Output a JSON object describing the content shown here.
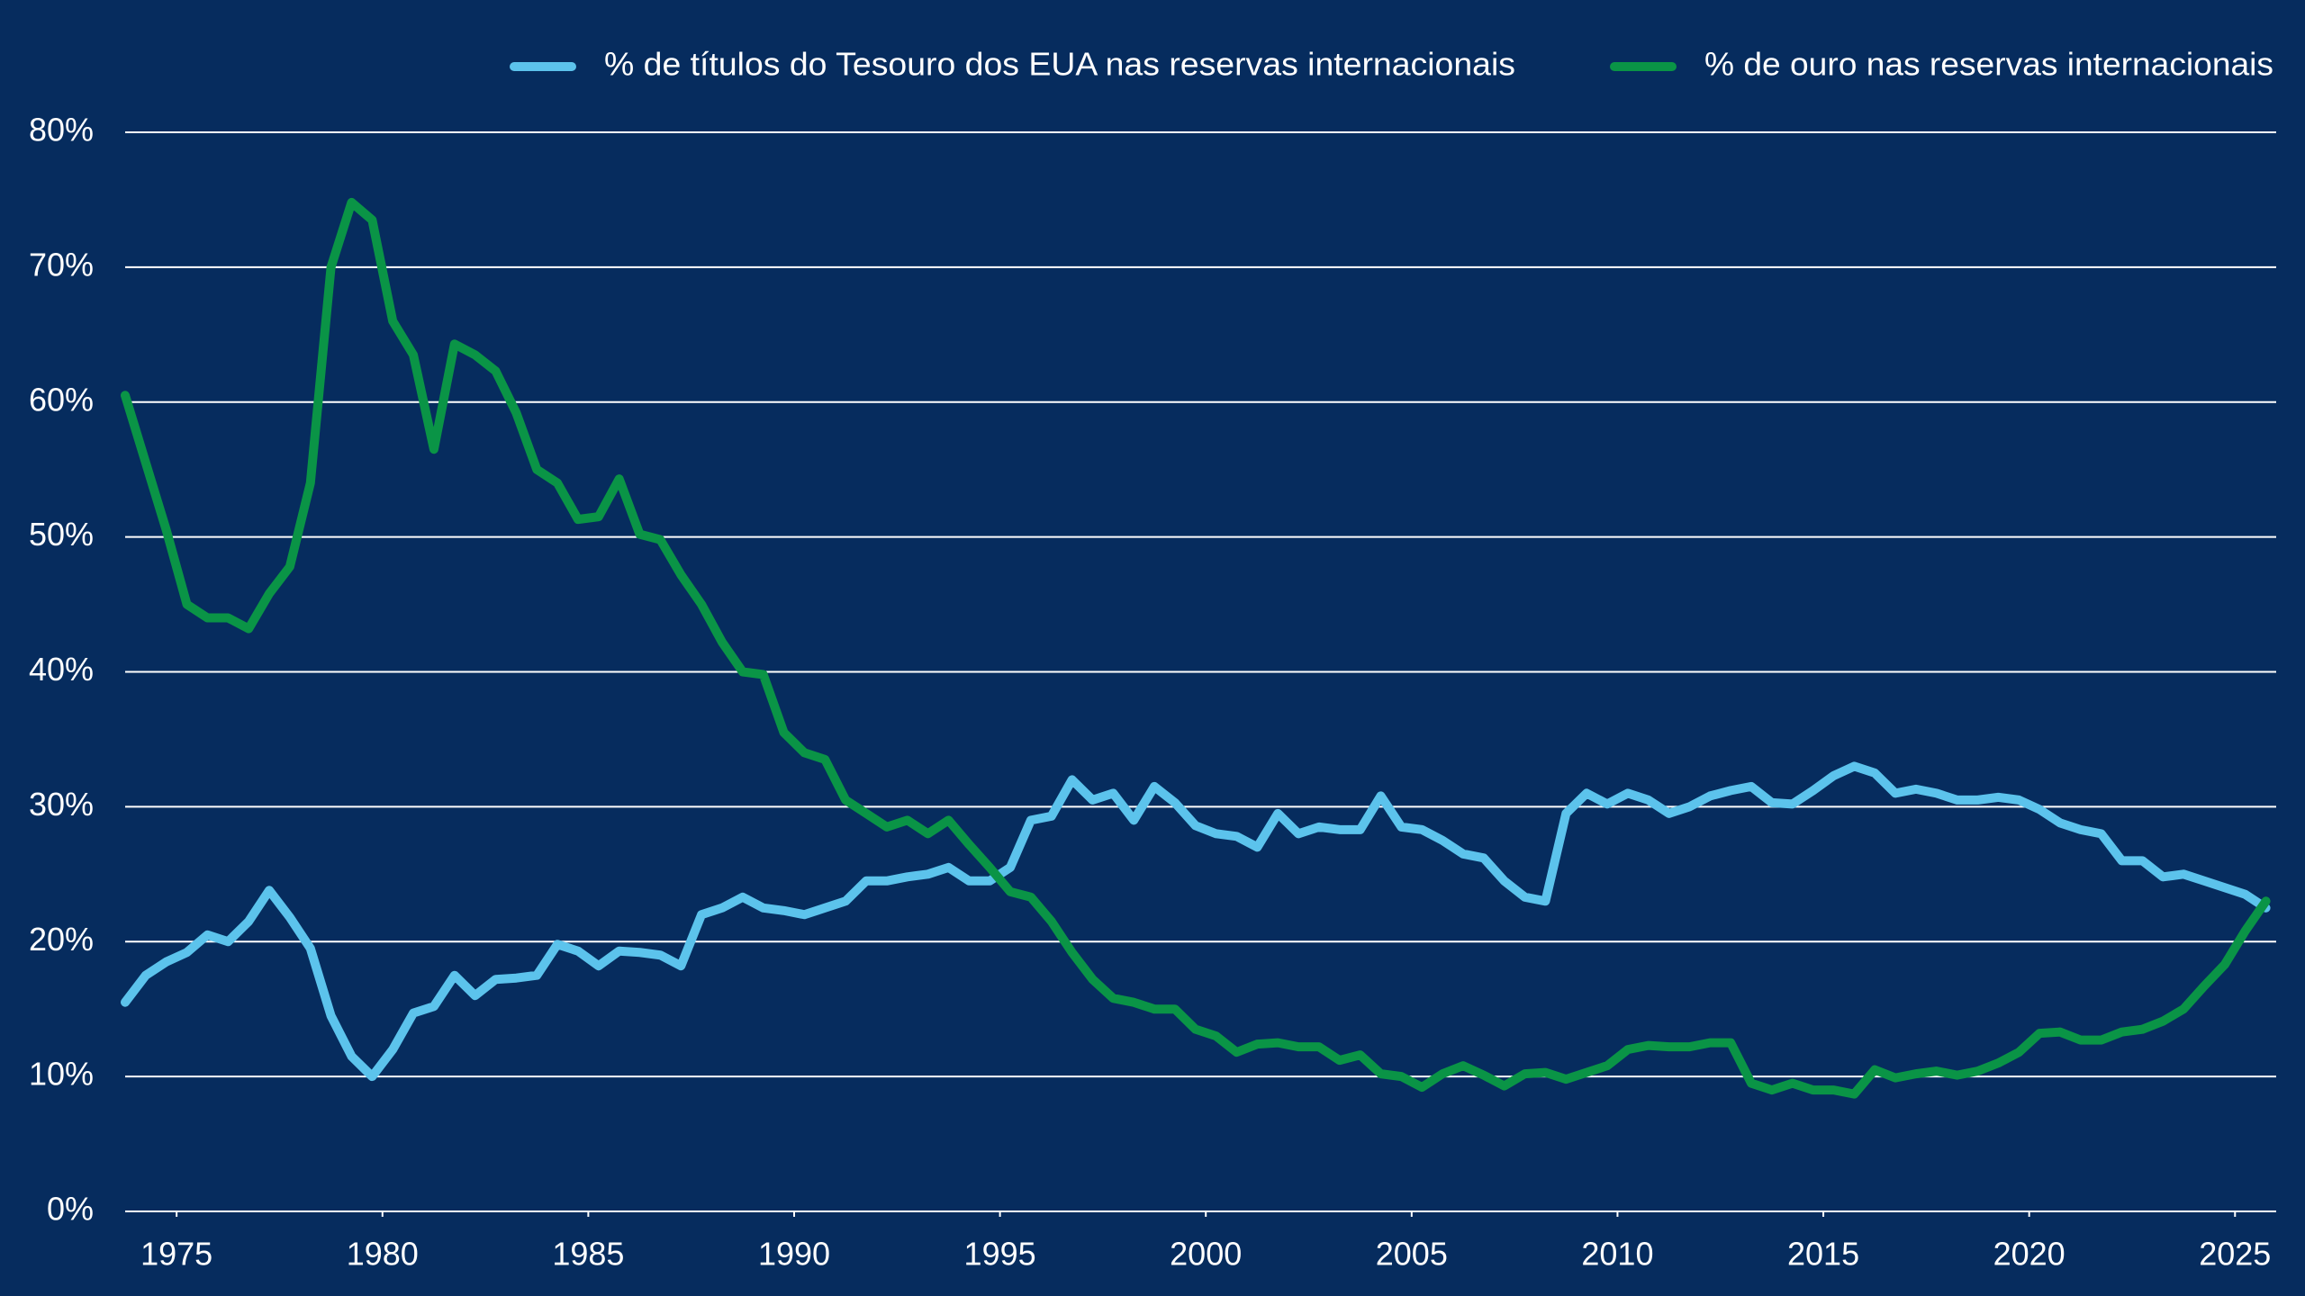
{
  "chart_data": {
    "type": "line",
    "x": [
      1973.75,
      1974.25,
      1974.75,
      1975.25,
      1975.75,
      1976.25,
      1976.75,
      1977.25,
      1977.75,
      1978.25,
      1978.75,
      1979.25,
      1979.75,
      1980.25,
      1980.75,
      1981.25,
      1981.75,
      1982.25,
      1982.75,
      1983.25,
      1983.75,
      1984.25,
      1984.75,
      1985.25,
      1985.75,
      1986.25,
      1986.75,
      1987.25,
      1987.75,
      1988.25,
      1988.75,
      1989.25,
      1989.75,
      1990.25,
      1990.75,
      1991.25,
      1991.75,
      1992.25,
      1992.75,
      1993.25,
      1993.75,
      1994.25,
      1994.75,
      1995.25,
      1995.75,
      1996.25,
      1996.75,
      1997.25,
      1997.75,
      1998.25,
      1998.75,
      1999.25,
      1999.75,
      2000.25,
      2000.75,
      2001.25,
      2001.75,
      2002.25,
      2002.75,
      2003.25,
      2003.75,
      2004.25,
      2004.75,
      2005.25,
      2005.75,
      2006.25,
      2006.75,
      2007.25,
      2007.75,
      2008.25,
      2008.75,
      2009.25,
      2009.75,
      2010.25,
      2010.75,
      2011.25,
      2011.75,
      2012.25,
      2012.75,
      2013.25,
      2013.75,
      2014.25,
      2014.75,
      2015.25,
      2015.75,
      2016.25,
      2016.75,
      2017.25,
      2017.75,
      2018.25,
      2018.75,
      2019.25,
      2019.75,
      2020.25,
      2020.75,
      2021.25,
      2021.75,
      2022.25,
      2022.75,
      2023.25,
      2023.75,
      2024.25,
      2024.75,
      2025.25,
      2025.75
    ],
    "series": [
      {
        "name": "% de títulos do Tesouro dos EUA nas reservas internacionais",
        "color": "#5cc3ec",
        "values": [
          15.5,
          17.5,
          18.5,
          19.2,
          20.5,
          20,
          21.5,
          23.8,
          21.8,
          19.5,
          14.5,
          11.5,
          10,
          12,
          14.7,
          15.2,
          17.5,
          16,
          17.2,
          17.3,
          17.5,
          19.8,
          19.3,
          18.2,
          19.3,
          19.2,
          19,
          18.2,
          22,
          22.5,
          23.3,
          22.5,
          22.3,
          22,
          22.5,
          23,
          24.5,
          24.5,
          24.8,
          25,
          25.5,
          24.5,
          24.5,
          25.5,
          29,
          29.3,
          32,
          30.5,
          31,
          29,
          31.5,
          30.3,
          28.6,
          28,
          27.8,
          27,
          29.5,
          28,
          28.5,
          28.3,
          28.3,
          30.8,
          28.5,
          28.3,
          27.5,
          26.5,
          26.2,
          24.5,
          23.3,
          23,
          29.5,
          31,
          30.2,
          31,
          30.5,
          29.5,
          30,
          30.8,
          31.2,
          31.5,
          30.3,
          30.2,
          31.2,
          32.3,
          33,
          32.5,
          31,
          31.3,
          31,
          30.5,
          30.5,
          30.7,
          30.5,
          29.8,
          28.8,
          28.3,
          28,
          26,
          26,
          24.8,
          25,
          24.5,
          24,
          23.5,
          22.5
        ]
      },
      {
        "name": "% de ouro nas reservas internacionais",
        "color": "#0a9446",
        "values": [
          60.5,
          55.5,
          50.5,
          45,
          44,
          44,
          43.2,
          45.8,
          47.8,
          54,
          70,
          74.8,
          73.5,
          66,
          63.5,
          56.5,
          64.3,
          63.5,
          62.3,
          59.2,
          55,
          54,
          51.3,
          51.5,
          54.3,
          50.2,
          49.8,
          47.2,
          45,
          42.2,
          40,
          39.8,
          35.5,
          34,
          33.5,
          30.5,
          29.5,
          28.5,
          29,
          28,
          29,
          27.2,
          25.5,
          23.7,
          23.3,
          21.5,
          19.2,
          17.2,
          15.8,
          15.5,
          15,
          15,
          13.5,
          13,
          11.8,
          12.4,
          12.5,
          12.2,
          12.2,
          11.2,
          11.6,
          10.2,
          10,
          9.2,
          10.2,
          10.8,
          10.1,
          9.3,
          10.2,
          10.3,
          9.8,
          10.3,
          10.8,
          12,
          12.3,
          12.2,
          12.2,
          12.5,
          12.5,
          9.5,
          9,
          9.5,
          9,
          9,
          8.7,
          10.5,
          9.9,
          10.2,
          10.4,
          10.1,
          10.4,
          11,
          11.8,
          13.2,
          13.3,
          12.7,
          12.7,
          13.3,
          13.5,
          14.1,
          15,
          16.7,
          18.3,
          20.8,
          23
        ]
      }
    ],
    "xlim": [
      1973.75,
      2026
    ],
    "xticks": [
      1975,
      1980,
      1985,
      1990,
      1995,
      2000,
      2005,
      2010,
      2015,
      2020,
      2025
    ],
    "ylim": [
      0,
      80
    ],
    "yticks": [
      {
        "value": 0,
        "label": "0%"
      },
      {
        "value": 10,
        "label": "10%"
      },
      {
        "value": 20,
        "label": "20%"
      },
      {
        "value": 30,
        "label": "30%"
      },
      {
        "value": 40,
        "label": "40%"
      },
      {
        "value": 50,
        "label": "50%"
      },
      {
        "value": 60,
        "label": "60%"
      },
      {
        "value": 70,
        "label": "70%"
      },
      {
        "value": 80,
        "label": "80%"
      }
    ],
    "grid": true,
    "legend": "top-right"
  }
}
